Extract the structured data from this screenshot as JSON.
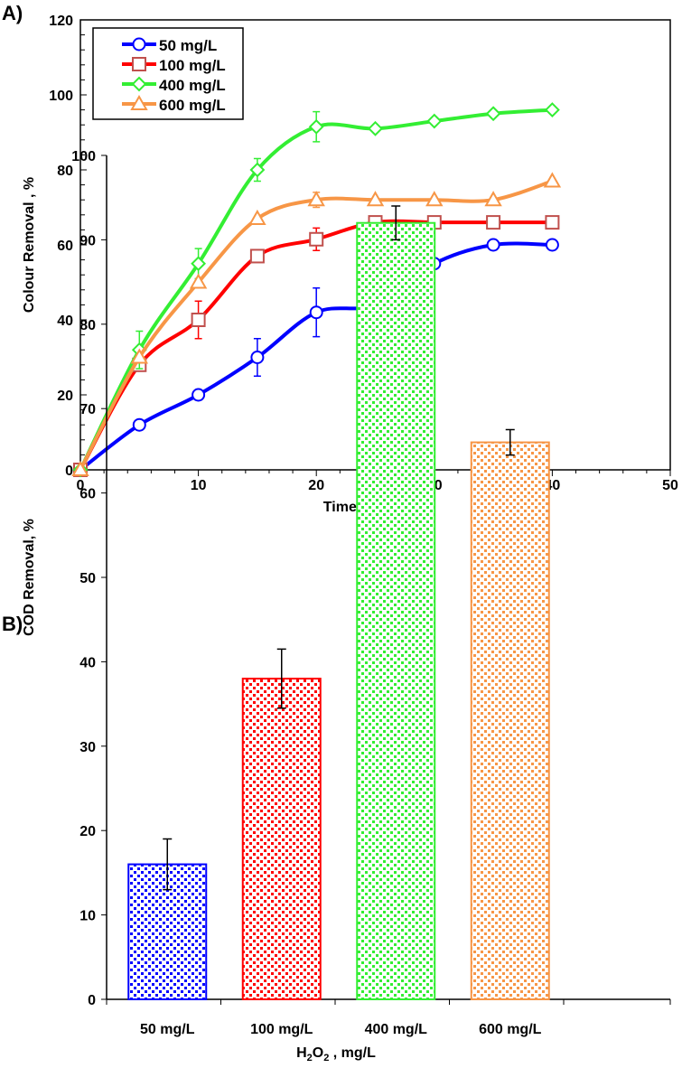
{
  "chart_data": [
    {
      "panel_label": "A)",
      "type": "line",
      "xlabel": "Time/ min",
      "ylabel": "Colour Removal , %",
      "xlim": [
        0,
        50
      ],
      "ylim": [
        0,
        120
      ],
      "xticks": [
        0,
        10,
        20,
        30,
        40,
        50
      ],
      "yticks": [
        0,
        20,
        40,
        60,
        80,
        100,
        120
      ],
      "legend_position": "top-left",
      "x": [
        0,
        5,
        10,
        15,
        20,
        25,
        30,
        35,
        40
      ],
      "series": [
        {
          "name": "50 mg/L",
          "color": "#0000ff",
          "marker": "circle",
          "values": [
            0,
            12,
            20,
            30,
            42,
            44,
            55,
            60,
            60
          ],
          "errors": [
            0,
            0,
            0,
            5,
            6.5,
            0,
            0,
            0,
            0
          ]
        },
        {
          "name": "100 mg/L",
          "color": "#ff0000",
          "marker": "square",
          "values": [
            0,
            28,
            40,
            57,
            61.5,
            66,
            66,
            66,
            66
          ],
          "errors": [
            0,
            0,
            5,
            0,
            3,
            0,
            0,
            0,
            0
          ]
        },
        {
          "name": "400 mg/L",
          "color": "#33ee33",
          "marker": "diamond",
          "values": [
            0,
            32,
            55,
            80,
            91.5,
            91,
            93,
            95,
            96
          ],
          "errors": [
            0,
            5,
            4,
            3,
            4,
            0,
            0,
            0,
            0
          ]
        },
        {
          "name": "600 mg/L",
          "color": "#f79646",
          "marker": "triangle",
          "values": [
            0,
            30,
            50,
            67,
            72,
            72,
            72,
            72,
            77
          ],
          "errors": [
            0,
            0,
            0,
            0,
            2,
            0,
            0,
            0,
            0
          ]
        }
      ]
    },
    {
      "panel_label": "B)",
      "type": "bar",
      "xlabel": "H2O2 , mg/L",
      "xlabel_main": "H",
      "xlabel_sub1": "2",
      "xlabel_mid": "O",
      "xlabel_sub2": "2",
      "xlabel_tail": " , mg/L",
      "ylabel": "COD Removal, %",
      "ylim": [
        0,
        100
      ],
      "yticks": [
        0,
        10,
        20,
        30,
        40,
        50,
        60,
        70,
        80,
        90,
        100
      ],
      "categories": [
        "50 mg/L",
        "100 mg/L",
        "400 mg/L",
        "600 mg/L"
      ],
      "values": [
        16,
        38,
        92,
        66
      ],
      "errors": [
        3,
        3.5,
        2,
        1.5
      ],
      "colors": [
        "#0000ff",
        "#ff0000",
        "#33ee33",
        "#f79646"
      ]
    }
  ]
}
